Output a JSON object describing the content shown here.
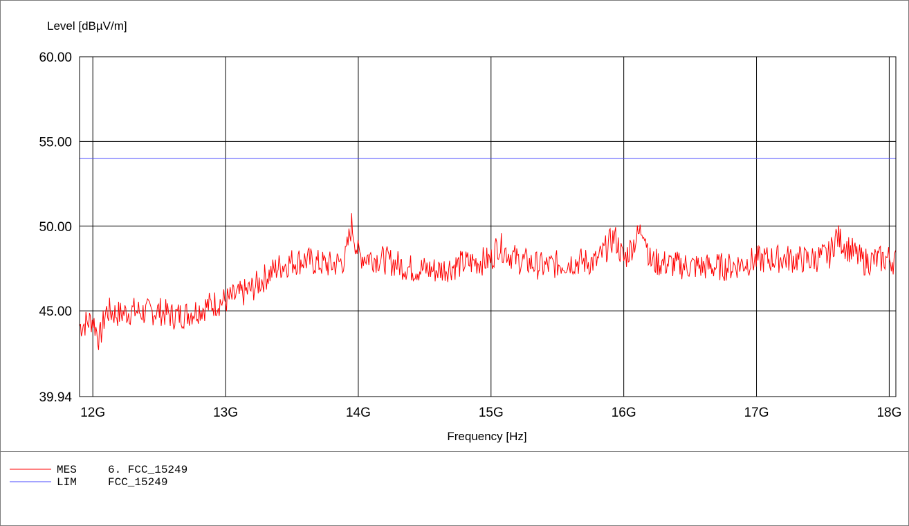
{
  "chart_data": {
    "type": "line",
    "ylabel": "Level [dBµV/m]",
    "xlabel": "Frequency [Hz]",
    "ylim": [
      39.94,
      60.0
    ],
    "y_ticks": [
      "60.00",
      "55.00",
      "50.00",
      "45.00",
      "39.94"
    ],
    "y_tick_values": [
      60.0,
      55.0,
      50.0,
      45.0,
      39.94
    ],
    "xlim": [
      11.9,
      18.05
    ],
    "x_ticks": [
      "12G",
      "13G",
      "14G",
      "15G",
      "16G",
      "17G",
      "18G"
    ],
    "x_tick_values": [
      12,
      13,
      14,
      15,
      16,
      17,
      18
    ],
    "grid": true,
    "series": [
      {
        "name": "MES",
        "color": "#ff0000",
        "x": [
          11.9,
          12.0,
          12.05,
          12.1,
          12.2,
          12.3,
          12.4,
          12.5,
          12.6,
          12.7,
          12.8,
          12.9,
          13.0,
          13.1,
          13.2,
          13.3,
          13.4,
          13.5,
          13.6,
          13.7,
          13.8,
          13.9,
          13.95,
          14.0,
          14.2,
          14.4,
          14.6,
          14.8,
          15.0,
          15.05,
          15.2,
          15.4,
          15.6,
          15.8,
          15.93,
          16.0,
          16.15,
          16.2,
          16.4,
          16.6,
          16.8,
          17.0,
          17.2,
          17.4,
          17.55,
          17.6,
          17.8,
          18.0,
          18.05
        ],
        "y": [
          44.1,
          44.5,
          43.3,
          45.0,
          44.8,
          45.0,
          44.9,
          45.0,
          44.7,
          44.8,
          45.1,
          45.4,
          45.6,
          45.9,
          46.3,
          47.0,
          47.6,
          47.9,
          48.0,
          47.8,
          47.7,
          48.0,
          50.1,
          48.3,
          48.0,
          47.5,
          47.4,
          47.8,
          48.0,
          48.9,
          48.0,
          47.6,
          47.9,
          47.9,
          49.4,
          48.0,
          50.0,
          47.9,
          47.7,
          47.6,
          47.6,
          48.0,
          48.1,
          48.0,
          48.3,
          49.4,
          47.9,
          48.1,
          47.9
        ]
      },
      {
        "name": "LIM",
        "color": "#4a4aff",
        "x": [
          11.9,
          18.05
        ],
        "y": [
          54.0,
          54.0
        ]
      }
    ]
  },
  "legend": {
    "entries": [
      {
        "code": "MES",
        "text": "6. FCC_15249",
        "color": "#ff0000"
      },
      {
        "code": "LIM",
        "text": "FCC_15249",
        "color": "#4a4aff"
      }
    ]
  }
}
